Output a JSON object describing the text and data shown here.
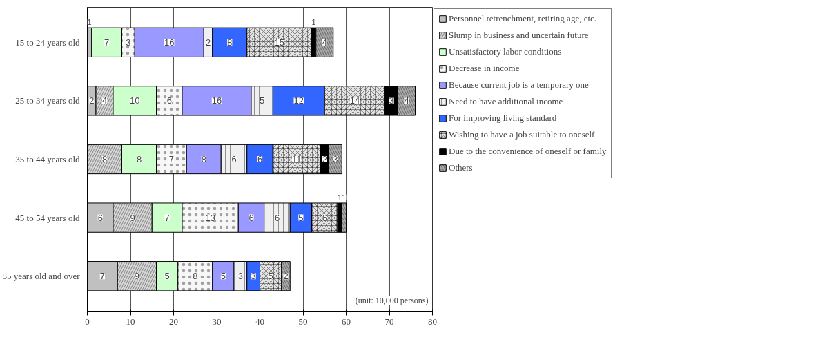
{
  "chart_data": {
    "type": "bar",
    "orientation": "horizontal",
    "stacked": true,
    "data_labels": true,
    "grid": "x",
    "legend": "right",
    "categories": [
      "15 to 24 years old",
      "25 to 34 years old",
      "35 to 44 years old",
      "45 to 54 years old",
      "55 years old and over"
    ],
    "xlim": [
      0,
      80
    ],
    "xticks": [
      0,
      10,
      20,
      30,
      40,
      50,
      60,
      70,
      80
    ],
    "annotations": [
      "(unit: 10,000 persons)"
    ],
    "series": [
      {
        "name": "Personnel retrenchment, retiring age, etc.",
        "color": "#c0c0c0",
        "values": [
          1,
          2,
          null,
          6,
          7
        ]
      },
      {
        "name": "Slump in business and uncertain future",
        "color": "#d6d6d6",
        "values": [
          null,
          4,
          8,
          9,
          9
        ]
      },
      {
        "name": "Unsatisfactory labor conditions",
        "color": "#ccffcc",
        "values": [
          7,
          10,
          8,
          7,
          5
        ]
      },
      {
        "name": "Decrease in income",
        "color": "#f7f7f7",
        "values": [
          3,
          6,
          7,
          13,
          8
        ]
      },
      {
        "name": "Because current job is a temporary one",
        "color": "#9999ff",
        "values": [
          16,
          16,
          8,
          6,
          5
        ]
      },
      {
        "name": "Need to have additional income",
        "color": "#f0f0f0",
        "values": [
          2,
          5,
          6,
          6,
          3
        ]
      },
      {
        "name": "For improving living standard",
        "color": "#3366ff",
        "values": [
          8,
          12,
          6,
          5,
          3
        ]
      },
      {
        "name": "Wishing to have a job suitable to oneself",
        "color": "#e3e3e3",
        "values": [
          15,
          14,
          11,
          6,
          5
        ]
      },
      {
        "name": "Due to the convenience of oneself or family",
        "color": "#000000",
        "values": [
          1,
          3,
          2,
          1,
          null
        ]
      },
      {
        "name": "Others",
        "color": "#a8a8a8",
        "values": [
          4,
          4,
          3,
          1,
          2
        ]
      }
    ]
  }
}
